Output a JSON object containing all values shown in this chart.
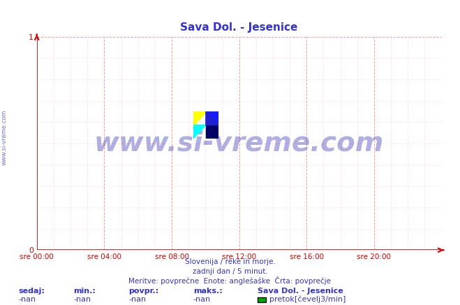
{
  "title": "Sava Dol. - Jesenice",
  "title_color": "#3333cc",
  "bg_color": "#ffffff",
  "plot_bg_color": "#ffffff",
  "grid_color_major": "#ff9999",
  "grid_color_minor": "#ffdddd",
  "axis_color": "#cc0000",
  "tick_color": "#cc0000",
  "xlim": [
    0,
    288
  ],
  "ylim": [
    0,
    1
  ],
  "yticks": [
    0,
    1
  ],
  "xtick_labels": [
    "sre 00:00",
    "sre 04:00",
    "sre 08:00",
    "sre 12:00",
    "sre 16:00",
    "sre 20:00"
  ],
  "xtick_positions": [
    0,
    48,
    96,
    144,
    192,
    240
  ],
  "watermark_text": "www.si-vreme.com",
  "watermark_color": "#1a1aaa",
  "watermark_alpha": 0.35,
  "sidebar_text": "www.si-vreme.com",
  "sidebar_color": "#3333cc",
  "footer_line1": "Slovenija / reke in morje.",
  "footer_line2": "zadnji dan / 5 minut.",
  "footer_line3": "Meritve: povprečne  Enote: anglešaške  Črta: povprečje",
  "footer_color": "#3333cc",
  "legend_title": "Sava Dol. - Jesenice",
  "legend_label": "pretok[čevelj3/min]",
  "legend_color": "#00aa00",
  "stats_labels": [
    "sedaj:",
    "min.:",
    "povpr.:",
    "maks.:"
  ],
  "stats_values": [
    "-nan",
    "-nan",
    "-nan",
    "-nan"
  ],
  "stats_color": "#3333cc",
  "logo_colors": {
    "yellow": "#ffff00",
    "cyan": "#00ffff",
    "blue": "#000088",
    "navy": "#000055"
  }
}
